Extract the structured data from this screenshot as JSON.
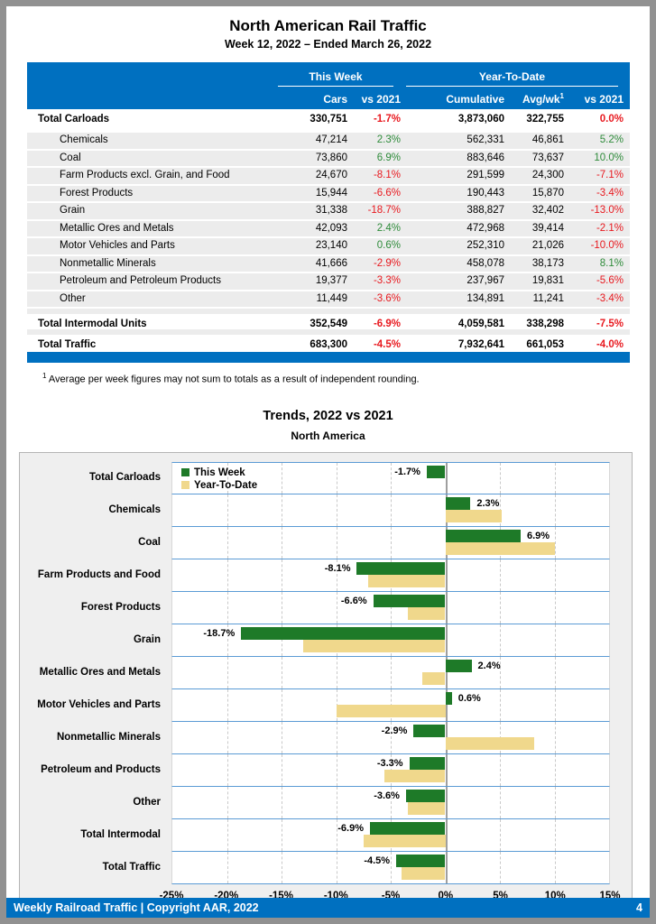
{
  "page": {
    "title": "North American Rail Traffic",
    "subtitle": "Week 12, 2022 – Ended March 26, 2022",
    "footnote_sup": "1",
    "footnote": "Average per week figures may not sum to totals as a result of independent rounding.",
    "footer_text": "Weekly Railroad Traffic | Copyright AAR, 2022",
    "footer_page": "4"
  },
  "colors": {
    "header_blue": "#0070c0",
    "band_line_blue": "#5b9bd5",
    "green_bar": "#1e7a28",
    "tan_bar": "#f0d88c",
    "positive_text": "#2e8b3a",
    "negative_text": "#e8191f"
  },
  "table": {
    "group_headers": {
      "week": "This Week",
      "ytd": "Year-To-Date"
    },
    "subheaders": {
      "cars": "Cars",
      "week_vs": "vs 2021",
      "cumulative": "Cumulative",
      "avgwk": "Avg/wk",
      "avgwk_sup": "1",
      "ytd_vs": "vs 2021"
    },
    "rows": [
      {
        "label": "Total Carloads",
        "total": true,
        "cars": "330,751",
        "week_pct": "-1.7%",
        "week_neg": true,
        "cumulative": "3,873,060",
        "avg_wk": "322,755",
        "ytd_pct": "0.0%",
        "ytd_neg": true
      },
      {
        "label": "Chemicals",
        "total": false,
        "cars": "47,214",
        "week_pct": "2.3%",
        "week_neg": false,
        "cumulative": "562,331",
        "avg_wk": "46,861",
        "ytd_pct": "5.2%",
        "ytd_neg": false
      },
      {
        "label": "Coal",
        "total": false,
        "cars": "73,860",
        "week_pct": "6.9%",
        "week_neg": false,
        "cumulative": "883,646",
        "avg_wk": "73,637",
        "ytd_pct": "10.0%",
        "ytd_neg": false
      },
      {
        "label": "Farm Products excl. Grain, and Food",
        "total": false,
        "cars": "24,670",
        "week_pct": "-8.1%",
        "week_neg": true,
        "cumulative": "291,599",
        "avg_wk": "24,300",
        "ytd_pct": "-7.1%",
        "ytd_neg": true
      },
      {
        "label": "Forest Products",
        "total": false,
        "cars": "15,944",
        "week_pct": "-6.6%",
        "week_neg": true,
        "cumulative": "190,443",
        "avg_wk": "15,870",
        "ytd_pct": "-3.4%",
        "ytd_neg": true
      },
      {
        "label": "Grain",
        "total": false,
        "cars": "31,338",
        "week_pct": "-18.7%",
        "week_neg": true,
        "cumulative": "388,827",
        "avg_wk": "32,402",
        "ytd_pct": "-13.0%",
        "ytd_neg": true
      },
      {
        "label": "Metallic Ores and Metals",
        "total": false,
        "cars": "42,093",
        "week_pct": "2.4%",
        "week_neg": false,
        "cumulative": "472,968",
        "avg_wk": "39,414",
        "ytd_pct": "-2.1%",
        "ytd_neg": true
      },
      {
        "label": "Motor Vehicles and Parts",
        "total": false,
        "cars": "23,140",
        "week_pct": "0.6%",
        "week_neg": false,
        "cumulative": "252,310",
        "avg_wk": "21,026",
        "ytd_pct": "-10.0%",
        "ytd_neg": true
      },
      {
        "label": "Nonmetallic Minerals",
        "total": false,
        "cars": "41,666",
        "week_pct": "-2.9%",
        "week_neg": true,
        "cumulative": "458,078",
        "avg_wk": "38,173",
        "ytd_pct": "8.1%",
        "ytd_neg": false
      },
      {
        "label": "Petroleum and Petroleum Products",
        "total": false,
        "cars": "19,377",
        "week_pct": "-3.3%",
        "week_neg": true,
        "cumulative": "237,967",
        "avg_wk": "19,831",
        "ytd_pct": "-5.6%",
        "ytd_neg": true
      },
      {
        "label": "Other",
        "total": false,
        "cars": "11,449",
        "week_pct": "-3.6%",
        "week_neg": true,
        "cumulative": "134,891",
        "avg_wk": "11,241",
        "ytd_pct": "-3.4%",
        "ytd_neg": true
      },
      {
        "label": "Total Intermodal Units",
        "total": true,
        "cars": "352,549",
        "week_pct": "-6.9%",
        "week_neg": true,
        "cumulative": "4,059,581",
        "avg_wk": "338,298",
        "ytd_pct": "-7.5%",
        "ytd_neg": true
      },
      {
        "label": "Total Traffic",
        "total": true,
        "cars": "683,300",
        "week_pct": "-4.5%",
        "week_neg": true,
        "cumulative": "7,932,641",
        "avg_wk": "661,053",
        "ytd_pct": "-4.0%",
        "ytd_neg": true
      }
    ]
  },
  "chart_data": {
    "type": "bar",
    "orientation": "horizontal",
    "title": "Trends, 2022 vs 2021",
    "subtitle": "North America",
    "categories": [
      "Total Carloads",
      "Chemicals",
      "Coal",
      "Farm Products and Food",
      "Forest Products",
      "Grain",
      "Metallic Ores and Metals",
      "Motor Vehicles and Parts",
      "Nonmetallic Minerals",
      "Petroleum and Products",
      "Other",
      "Total Intermodal",
      "Total Traffic"
    ],
    "series": [
      {
        "name": "This Week",
        "color": "#1e7a28",
        "values": [
          -1.7,
          2.3,
          6.9,
          -8.1,
          -6.6,
          -18.7,
          2.4,
          0.6,
          -2.9,
          -3.3,
          -3.6,
          -6.9,
          -4.5
        ]
      },
      {
        "name": "Year-To-Date",
        "color": "#f0d88c",
        "values": [
          0.0,
          5.2,
          10.0,
          -7.1,
          -3.4,
          -13.0,
          -2.1,
          -10.0,
          8.1,
          -5.6,
          -3.4,
          -7.5,
          -4.0
        ]
      }
    ],
    "bar_labels": [
      "-1.7%",
      "2.3%",
      "6.9%",
      "-8.1%",
      "-6.6%",
      "-18.7%",
      "2.4%",
      "0.6%",
      "-2.9%",
      "-3.3%",
      "-3.6%",
      "-6.9%",
      "-4.5%"
    ],
    "xlim": [
      -25,
      15
    ],
    "xticks": [
      {
        "v": -25,
        "label": "-25%"
      },
      {
        "v": -20,
        "label": "-20%"
      },
      {
        "v": -15,
        "label": "-15%"
      },
      {
        "v": -10,
        "label": "-10%"
      },
      {
        "v": -5,
        "label": "-5%"
      },
      {
        "v": 0,
        "label": "0%"
      },
      {
        "v": 5,
        "label": "5%"
      },
      {
        "v": 10,
        "label": "10%"
      },
      {
        "v": 15,
        "label": "15%"
      }
    ],
    "legend_position": "top-left-inside",
    "grid": "vertical-dashed"
  }
}
